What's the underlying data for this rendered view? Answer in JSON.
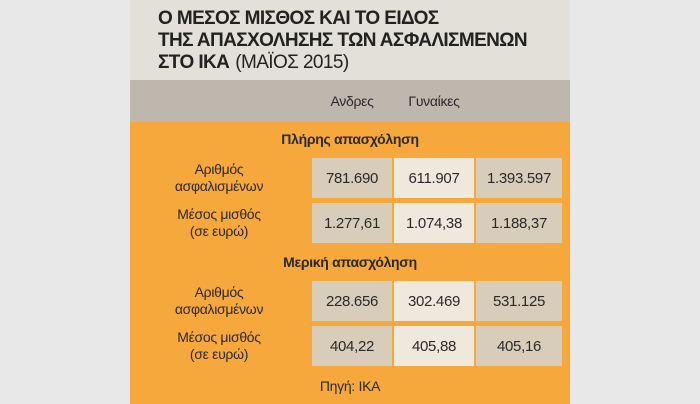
{
  "title": {
    "lines": [
      "Ο ΜΕΣΟΣ ΜΙΣΘΟΣ ΚΑΙ ΤΟ ΕΙΔΟΣ",
      "ΤΗΣ ΑΠΑΣΧΟΛΗΣΗΣ ΤΩΝ ΑΣΦΑΛΙΣΜΕΝΩΝ",
      "ΣΤΟ ΙΚΑ"
    ],
    "date": "(ΜΑΪΟΣ 2015)"
  },
  "table": {
    "columns": [
      "Ανδρες",
      "Γυναίκες"
    ],
    "sections": [
      {
        "heading": "Πλήρης απασχόληση",
        "rows": [
          {
            "label": [
              "Αριθμός",
              "ασφαλισμένων"
            ],
            "cells": [
              "781.690",
              "611.907",
              "1.393.597"
            ]
          },
          {
            "label": [
              "Μέσος μισθός",
              "(σε ευρώ)"
            ],
            "cells": [
              "1.277,61",
              "1.074,38",
              "1.188,37"
            ]
          }
        ]
      },
      {
        "heading": "Μερική απασχόληση",
        "rows": [
          {
            "label": [
              "Αριθμός",
              "ασφαλισμένων"
            ],
            "cells": [
              "228.656",
              "302.469",
              "531.125"
            ]
          },
          {
            "label": [
              "Μέσος μισθός",
              "(σε ευρώ)"
            ],
            "cells": [
              "404,22",
              "405,88",
              "405,16"
            ]
          }
        ]
      }
    ]
  },
  "source": "Πηγή: ΙΚΑ"
}
